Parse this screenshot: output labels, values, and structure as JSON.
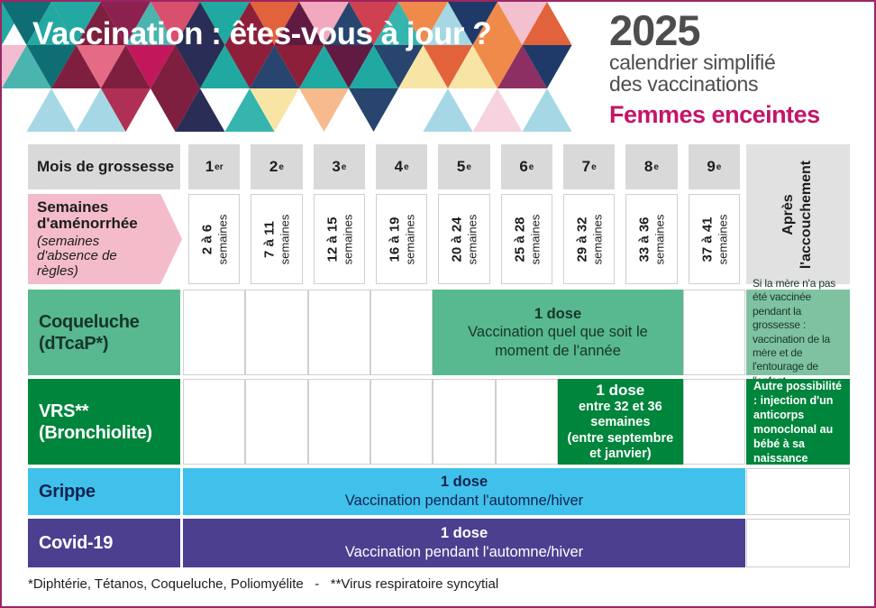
{
  "title": "Vaccination : êtes-vous à jour ?",
  "year_block": {
    "year": "2025",
    "subtitle_line1": "calendrier simplifié",
    "subtitle_line2": "des vaccinations",
    "audience": "Femmes enceintes"
  },
  "footnote": "*Diphtérie, Tétanos, Coqueluche, Poliomyélite   -   **Virus respiratoire syncytial",
  "colors": {
    "page-border": "#9c2663",
    "year-gray": "#4d4d4d",
    "magenta": "#c31569",
    "header-gray": "#d9d9d9",
    "after-gray": "#e1e1e1",
    "pink": "#f4bcca",
    "coq-green": "#58b890",
    "coq-light-green": "#7fc2a2",
    "coq-text": "#17352a",
    "vrs-green": "#00853c",
    "grippe-blue": "#3fc1ec",
    "covid-purple": "#4c3f90",
    "navy-text": "#15224f",
    "dark-text": "#1d1d1b",
    "cell-border": "#cfcfcf"
  },
  "mosaic": {
    "seed": 11,
    "palettes": {
      "left": [
        "#c2185b",
        "#d94f6e",
        "#e98aa8",
        "#f3bcd0",
        "#b03055",
        "#7e1f3f",
        "#24a8a2",
        "#0e6e74",
        "#4ab5ae",
        "#f0a0b5",
        "#8c2150",
        "#e46a86"
      ],
      "mid": [
        "#cf4050",
        "#8e1f3a",
        "#5d1530",
        "#2a2d55",
        "#20a9a1",
        "#0f6b74",
        "#e2623c",
        "#27456e",
        "#c2185b",
        "#f2a8bd",
        "#611a41",
        "#35b5ad"
      ],
      "right": [
        "#e2623c",
        "#ef8a4b",
        "#f6ba8c",
        "#f8e5a6",
        "#a5d8e4",
        "#27b0a8",
        "#1f3a68",
        "#c2185b",
        "#8e2f63",
        "#f2c0cf",
        "#0f6b74",
        "#d94f6e"
      ],
      "light": [
        "#f3bcd0",
        "#f6d3de",
        "#e98aa8",
        "#f6ba8c",
        "#a5d8e4",
        "#f8e5a6",
        "#cfe9ec"
      ]
    }
  },
  "table": {
    "month_header": "Mois de grossesse",
    "months": [
      {
        "num": "1",
        "sup": "er"
      },
      {
        "num": "2",
        "sup": "e"
      },
      {
        "num": "3",
        "sup": "e"
      },
      {
        "num": "4",
        "sup": "e"
      },
      {
        "num": "5",
        "sup": "e"
      },
      {
        "num": "6",
        "sup": "e"
      },
      {
        "num": "7",
        "sup": "e"
      },
      {
        "num": "8",
        "sup": "e"
      },
      {
        "num": "9",
        "sup": "e"
      }
    ],
    "weeks_title": "Semaines d'aménorrhée",
    "weeks_subtitle": "(semaines d'absence de règles)",
    "weeks": [
      {
        "range": "2 à 6",
        "unit": "semaines"
      },
      {
        "range": "7 à 11",
        "unit": "semaines"
      },
      {
        "range": "12 à 15",
        "unit": "semaines"
      },
      {
        "range": "16 à 19",
        "unit": "semaines"
      },
      {
        "range": "20 à 24",
        "unit": "semaines"
      },
      {
        "range": "25 à 28",
        "unit": "semaines"
      },
      {
        "range": "29 à 32",
        "unit": "semaines"
      },
      {
        "range": "33 à 36",
        "unit": "semaines"
      },
      {
        "range": "37 à 41",
        "unit": "semaines"
      }
    ],
    "after_header_line1": "Après",
    "after_header_line2": "l'accouchement",
    "rows": {
      "coqueluche": {
        "label_line1": "Coqueluche",
        "label_line2": "(dTcaP*)",
        "dose": "1 dose",
        "bar_text": "Vaccination quel que soit le moment de l'année",
        "after_note": "Si la mère n'a pas été vaccinée pendant la grossesse : vaccination de la mère et de l'entourage de l'enfant"
      },
      "vrs": {
        "label_line1": "VRS**",
        "label_line2": "(Bronchiolite)",
        "dose": "1 dose",
        "bar_line2": "entre 32 et 36 semaines",
        "bar_line3": "(entre septembre et janvier)",
        "after_note": "Autre possibilité : injection d'un anticorps monoclonal au bébé à sa naissance"
      },
      "grippe": {
        "label": "Grippe",
        "dose": "1 dose",
        "bar_text": "Vaccination pendant l'automne/hiver"
      },
      "covid": {
        "label": "Covid-19",
        "dose": "1 dose",
        "bar_text": "Vaccination pendant l'automne/hiver"
      }
    }
  }
}
